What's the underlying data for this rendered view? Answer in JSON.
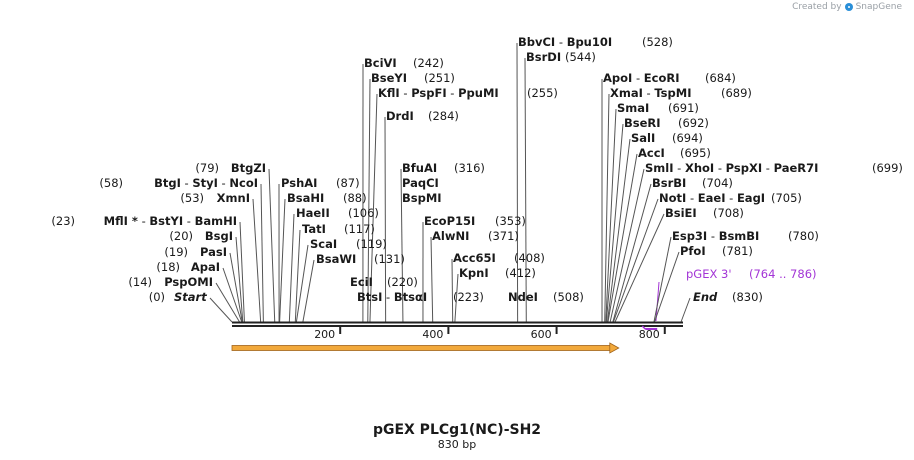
{
  "app": {
    "created_by": "Created by",
    "brand": "SnapGene"
  },
  "map": {
    "title": "pGEX PLCg1(NC)-SH2",
    "length_label": "830 bp",
    "total_bp": 830,
    "ticks": [
      "200",
      "400",
      "600",
      "800"
    ],
    "tick_values": [
      200,
      400,
      600,
      800
    ],
    "start_label": {
      "pos_text": "(0)",
      "name": "Start",
      "bp": 0
    },
    "end_label": {
      "name": "End",
      "pos_text": "(830)",
      "bp": 830
    },
    "feature": {
      "name": "pGEX 3'",
      "range": "(764 .. 786)",
      "start": 764,
      "end": 786,
      "color": "#a335d6"
    },
    "orf": {
      "start": 0,
      "end": 715,
      "color": "#f2a93b",
      "outline": "#a0631b"
    },
    "left_sites": [
      {
        "text": "PspOMI",
        "pos_text": "(14)",
        "bp": 14
      },
      {
        "text": "ApaI",
        "pos_text": "(18)",
        "bp": 18
      },
      {
        "text": "PasI",
        "pos_text": "(19)",
        "bp": 19
      },
      {
        "text": "BsgI",
        "pos_text": "(20)",
        "bp": 20
      },
      {
        "text": "MflI * - BstYI - BamHI",
        "pos_text": "(23)",
        "bp": 23
      },
      {
        "text": "XmnI",
        "pos_text": "(53)",
        "bp": 53
      },
      {
        "text": "BtgI - StyI - NcoI",
        "pos_text": "(58)",
        "bp": 58
      },
      {
        "text": "BtgZI",
        "pos_text": "(79)",
        "bp": 79
      }
    ],
    "mid_sites": [
      {
        "text": "PshAI",
        "pos_text": "(87)",
        "bp": 87
      },
      {
        "text": "BsaHI",
        "pos_text": "(88)",
        "bp": 88
      },
      {
        "text": "HaeII",
        "pos_text": "(106)",
        "bp": 106
      },
      {
        "text": "TatI",
        "pos_text": "(117)",
        "bp": 117
      },
      {
        "text": "ScaI",
        "pos_text": "(119)",
        "bp": 119
      },
      {
        "text": "BsaWI",
        "pos_text": "(131)",
        "bp": 131
      }
    ],
    "top_left_sites": [
      {
        "text": "BciVI",
        "pos_text": "(242)",
        "bp": 242
      },
      {
        "text": "BseYI",
        "pos_text": "(251)",
        "bp": 251
      },
      {
        "text": "KflI - PspFI - PpuMI",
        "pos_text": "(255)",
        "bp": 255
      },
      {
        "text": "DrdI",
        "pos_text": "(284)",
        "bp": 284
      }
    ],
    "center_sites": [
      {
        "text": "BfuAI",
        "pos_text": "(316)",
        "bp": 316
      },
      {
        "text": "PaqCI",
        "pos_text": "",
        "bp": 316
      },
      {
        "text": "BspMI",
        "pos_text": "",
        "bp": 316
      },
      {
        "text": "EcoP15I",
        "pos_text": "(353)",
        "bp": 353
      },
      {
        "text": "AlwNI",
        "pos_text": "(371)",
        "bp": 371
      },
      {
        "text": "Acc65I",
        "pos_text": "(408)",
        "bp": 408
      },
      {
        "text": "KpnI",
        "pos_text": "(412)",
        "bp": 412
      }
    ],
    "low_sites": [
      {
        "text": "EciI",
        "pos_text": "(220)",
        "bp": 220
      },
      {
        "text": "BtsI - BtsαI",
        "pos_text": "(223)",
        "bp": 223
      },
      {
        "text": "NdeI",
        "pos_text": "(508)",
        "bp": 508
      }
    ],
    "top_center_sites": [
      {
        "text": "BbvCI - Bpu10I",
        "pos_text": "(528)",
        "bp": 528
      },
      {
        "text": "BsrDI",
        "pos_text": "(544)",
        "bp": 544
      }
    ],
    "right_sites": [
      {
        "text": "ApoI - EcoRI",
        "pos_text": "(684)",
        "bp": 684
      },
      {
        "text": "XmaI - TspMI",
        "pos_text": "(689)",
        "bp": 689
      },
      {
        "text": "SmaI",
        "pos_text": "(691)",
        "bp": 691
      },
      {
        "text": "BseRI",
        "pos_text": "(692)",
        "bp": 692
      },
      {
        "text": "SalI",
        "pos_text": "(694)",
        "bp": 694
      },
      {
        "text": "AccI",
        "pos_text": "(695)",
        "bp": 695
      },
      {
        "text": "SmlI - XhoI - PspXI - PaeR7I",
        "pos_text": "(699)",
        "bp": 699
      },
      {
        "text": "BsrBI",
        "pos_text": "(704)",
        "bp": 704
      },
      {
        "text": "NotI - EaeI - EagI",
        "pos_text": "(705)",
        "bp": 705
      },
      {
        "text": "BsiEI",
        "pos_text": "(708)",
        "bp": 708
      },
      {
        "text": "Esp3I - BsmBI",
        "pos_text": "(780)",
        "bp": 780
      },
      {
        "text": "PfoI",
        "pos_text": "(781)",
        "bp": 781
      }
    ]
  }
}
